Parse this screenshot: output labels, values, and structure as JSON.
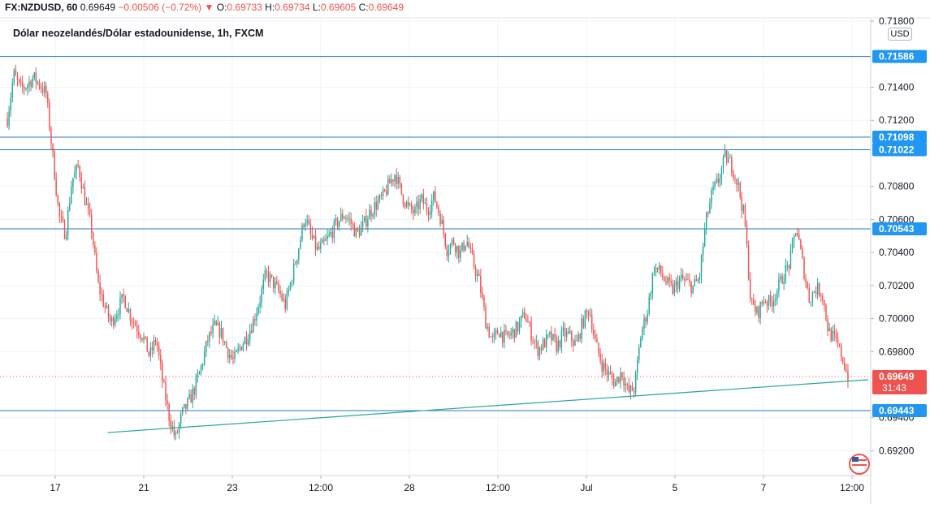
{
  "legend": {
    "symbol": "FX:NZDUSD, 60",
    "last": "0.69649",
    "change": "−0.00506 (−0.72%)",
    "open_label": "O:",
    "open": "0.69733",
    "high_label": "H:",
    "high": "0.69734",
    "low_label": "L:",
    "low": "0.69605",
    "close_label": "C:",
    "close": "0.69649"
  },
  "subtitle": "Dólar neozelandés/Dólar estadounidense, 1h, FXCM",
  "currency_badge": "USD",
  "colors": {
    "up": "#26a69a",
    "down": "#ef5350",
    "hline": "#2a7ab8",
    "label_bg": "#2196f3",
    "trendline": "#26a69a",
    "grid": "#f0f3fa",
    "axis_text": "#131722"
  },
  "chart_data": {
    "type": "candlestick",
    "ylim": [
      0.6905,
      0.7182
    ],
    "y_ticks": [
      "0.71800",
      "0.71400",
      "0.71200",
      "0.70800",
      "0.70600",
      "0.70400",
      "0.70200",
      "0.70000",
      "0.69800",
      "0.69400",
      "0.69200"
    ],
    "x_ticks": [
      "17",
      "21",
      "23",
      "12:00",
      "28",
      "12:00",
      "Jul",
      "5",
      "7",
      "12:00"
    ],
    "grid": true,
    "horizontal_levels": [
      "0.71586",
      "0.71098",
      "0.71022",
      "0.70543",
      "0.69443"
    ],
    "last_price": "0.69649",
    "countdown": "31:43",
    "trendline": {
      "from": [
        0.12,
        0.6931
      ],
      "to": [
        1.0,
        0.6963
      ]
    },
    "path": [
      [
        0,
        0.7121
      ],
      [
        1,
        0.7148
      ],
      [
        2,
        0.7139
      ],
      [
        3,
        0.7141
      ],
      [
        4,
        0.7146
      ],
      [
        5,
        0.7142
      ],
      [
        6,
        0.7136
      ],
      [
        7,
        0.7099
      ],
      [
        8,
        0.7062
      ],
      [
        9,
        0.7051
      ],
      [
        10,
        0.7084
      ],
      [
        11,
        0.7092
      ],
      [
        12,
        0.7072
      ],
      [
        13,
        0.7055
      ],
      [
        14,
        0.7021
      ],
      [
        15,
        0.7008
      ],
      [
        16,
        0.6997
      ],
      [
        17,
        0.7005
      ],
      [
        18,
        0.7013
      ],
      [
        19,
        0.7002
      ],
      [
        20,
        0.6995
      ],
      [
        21,
        0.6989
      ],
      [
        22,
        0.6977
      ],
      [
        23,
        0.6988
      ],
      [
        24,
        0.6962
      ],
      [
        25,
        0.6941
      ],
      [
        26,
        0.6927
      ],
      [
        27,
        0.6942
      ],
      [
        28,
        0.6949
      ],
      [
        29,
        0.6958
      ],
      [
        30,
        0.6971
      ],
      [
        31,
        0.6987
      ],
      [
        32,
        0.6995
      ],
      [
        33,
        0.6992
      ],
      [
        34,
        0.6981
      ],
      [
        35,
        0.6974
      ],
      [
        36,
        0.6983
      ],
      [
        37,
        0.6989
      ],
      [
        38,
        0.6998
      ],
      [
        39,
        0.7011
      ],
      [
        40,
        0.7027
      ],
      [
        41,
        0.7022
      ],
      [
        42,
        0.7016
      ],
      [
        43,
        0.7008
      ],
      [
        44,
        0.7025
      ],
      [
        45,
        0.7042
      ],
      [
        46,
        0.7062
      ],
      [
        47,
        0.7049
      ],
      [
        48,
        0.7041
      ],
      [
        49,
        0.7045
      ],
      [
        50,
        0.7051
      ],
      [
        51,
        0.7058
      ],
      [
        52,
        0.7063
      ],
      [
        53,
        0.7059
      ],
      [
        54,
        0.7051
      ],
      [
        55,
        0.7056
      ],
      [
        56,
        0.7064
      ],
      [
        57,
        0.7069
      ],
      [
        58,
        0.7073
      ],
      [
        59,
        0.7081
      ],
      [
        60,
        0.7088
      ],
      [
        61,
        0.7075
      ],
      [
        62,
        0.7067
      ],
      [
        63,
        0.7064
      ],
      [
        64,
        0.7072
      ],
      [
        65,
        0.7066
      ],
      [
        66,
        0.7074
      ],
      [
        67,
        0.7061
      ],
      [
        68,
        0.7042
      ],
      [
        69,
        0.7047
      ],
      [
        70,
        0.7039
      ],
      [
        71,
        0.7048
      ],
      [
        72,
        0.7034
      ],
      [
        73,
        0.7022
      ],
      [
        74,
        0.6998
      ],
      [
        75,
        0.6986
      ],
      [
        76,
        0.6993
      ],
      [
        77,
        0.6988
      ],
      [
        78,
        0.6991
      ],
      [
        79,
        0.6995
      ],
      [
        80,
        0.7003
      ],
      [
        81,
        0.6991
      ],
      [
        82,
        0.6981
      ],
      [
        83,
        0.6985
      ],
      [
        84,
        0.6989
      ],
      [
        85,
        0.6983
      ],
      [
        86,
        0.6991
      ],
      [
        87,
        0.6989
      ],
      [
        88,
        0.6984
      ],
      [
        89,
        0.6998
      ],
      [
        90,
        0.7006
      ],
      [
        91,
        0.6984
      ],
      [
        92,
        0.6972
      ],
      [
        93,
        0.6966
      ],
      [
        94,
        0.6961
      ],
      [
        95,
        0.6968
      ],
      [
        96,
        0.6955
      ],
      [
        97,
        0.6958
      ],
      [
        98,
        0.6991
      ],
      [
        99,
        0.7005
      ],
      [
        100,
        0.7031
      ],
      [
        101,
        0.7028
      ],
      [
        102,
        0.7021
      ],
      [
        103,
        0.7017
      ],
      [
        104,
        0.7024
      ],
      [
        105,
        0.7022
      ],
      [
        106,
        0.7019
      ],
      [
        107,
        0.7024
      ],
      [
        108,
        0.7058
      ],
      [
        109,
        0.7076
      ],
      [
        110,
        0.7084
      ],
      [
        111,
        0.7098
      ],
      [
        112,
        0.7093
      ],
      [
        113,
        0.7081
      ],
      [
        114,
        0.7061
      ],
      [
        115,
        0.7009
      ],
      [
        116,
        0.7003
      ],
      [
        117,
        0.7012
      ],
      [
        118,
        0.7009
      ],
      [
        119,
        0.7017
      ],
      [
        120,
        0.7026
      ],
      [
        121,
        0.7034
      ],
      [
        122,
        0.7056
      ],
      [
        123,
        0.7033
      ],
      [
        124,
        0.7012
      ],
      [
        125,
        0.7018
      ],
      [
        126,
        0.7016
      ],
      [
        127,
        0.6992
      ],
      [
        128,
        0.6987
      ],
      [
        129,
        0.6978
      ],
      [
        130,
        0.6965
      ]
    ]
  }
}
